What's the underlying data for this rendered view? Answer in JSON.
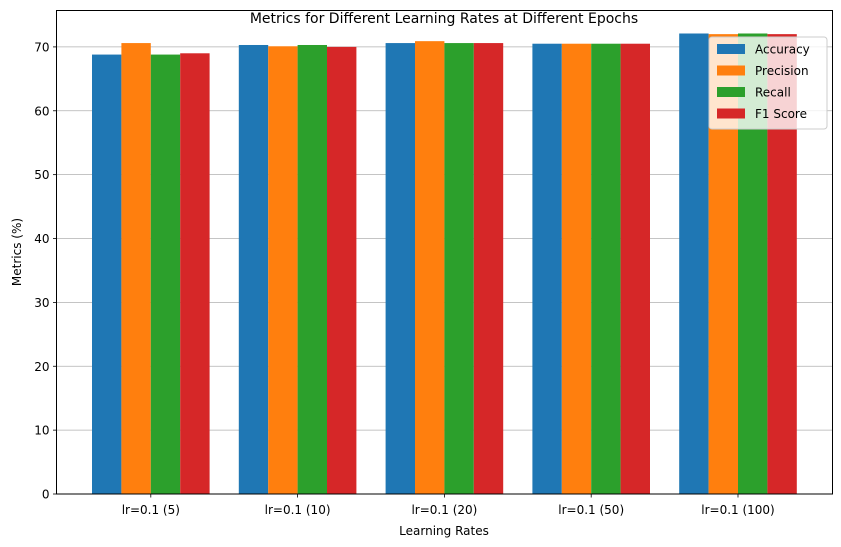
{
  "chart_data": {
    "type": "bar",
    "title": "Metrics for Different Learning Rates at Different Epochs",
    "xlabel": "Learning Rates",
    "ylabel": "Metrics (%)",
    "categories": [
      "lr=0.1 (5)",
      "lr=0.1 (10)",
      "lr=0.1 (20)",
      "lr=0.1 (50)",
      "lr=0.1 (100)"
    ],
    "series": [
      {
        "name": "Accuracy",
        "color": "#1f77b4",
        "values": [
          68.8,
          70.3,
          70.6,
          70.5,
          72.1
        ]
      },
      {
        "name": "Precision",
        "color": "#ff7f0e",
        "values": [
          70.6,
          70.1,
          70.9,
          70.5,
          72.0
        ]
      },
      {
        "name": "Recall",
        "color": "#2ca02c",
        "values": [
          68.8,
          70.3,
          70.6,
          70.5,
          72.1
        ]
      },
      {
        "name": "F1 Score",
        "color": "#d62728",
        "values": [
          69.0,
          70.0,
          70.6,
          70.5,
          72.0
        ]
      }
    ],
    "ylim": [
      0,
      75.7
    ],
    "yticks": [
      0,
      10,
      20,
      30,
      40,
      50,
      60,
      70
    ],
    "grid": "y",
    "legend_position": "top-right"
  }
}
